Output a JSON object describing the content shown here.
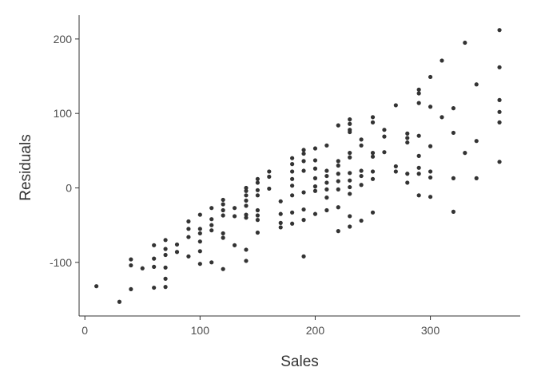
{
  "chart_data": {
    "type": "scatter",
    "title": "",
    "xlabel": "Sales",
    "ylabel": "Residuals",
    "xlim": [
      -5,
      378
    ],
    "ylim": [
      -172,
      232
    ],
    "xticks": [
      0,
      100,
      200,
      300
    ],
    "yticks": [
      -100,
      0,
      100,
      200
    ],
    "xtick_labels": [
      "0",
      "100",
      "200",
      "300"
    ],
    "ytick_labels": [
      "-100",
      "0",
      "100",
      "200"
    ],
    "grid": false,
    "point_color": "#333333",
    "series": [
      {
        "name": "residuals",
        "points": [
          [
            10,
            -132
          ],
          [
            30,
            -153
          ],
          [
            40,
            -96
          ],
          [
            40,
            -104
          ],
          [
            40,
            -136
          ],
          [
            50,
            -108
          ],
          [
            60,
            -77
          ],
          [
            60,
            -95
          ],
          [
            60,
            -106
          ],
          [
            60,
            -134
          ],
          [
            70,
            -70
          ],
          [
            70,
            -82
          ],
          [
            70,
            -90
          ],
          [
            70,
            -107
          ],
          [
            70,
            -122
          ],
          [
            70,
            -133
          ],
          [
            80,
            -76
          ],
          [
            80,
            -86
          ],
          [
            90,
            -45
          ],
          [
            90,
            -55
          ],
          [
            90,
            -66
          ],
          [
            90,
            -92
          ],
          [
            100,
            -36
          ],
          [
            100,
            -55
          ],
          [
            100,
            -61
          ],
          [
            100,
            -72
          ],
          [
            100,
            -85
          ],
          [
            100,
            -102
          ],
          [
            110,
            -27
          ],
          [
            110,
            -42
          ],
          [
            110,
            -50
          ],
          [
            110,
            -57
          ],
          [
            110,
            -100
          ],
          [
            120,
            -16
          ],
          [
            120,
            -22
          ],
          [
            120,
            -30
          ],
          [
            120,
            -37
          ],
          [
            120,
            -61
          ],
          [
            120,
            -67
          ],
          [
            120,
            -109
          ],
          [
            130,
            -27
          ],
          [
            130,
            -38
          ],
          [
            130,
            -77
          ],
          [
            140,
            0
          ],
          [
            140,
            -4
          ],
          [
            140,
            -10
          ],
          [
            140,
            -17
          ],
          [
            140,
            -24
          ],
          [
            140,
            -36
          ],
          [
            140,
            -40
          ],
          [
            140,
            -83
          ],
          [
            140,
            -98
          ],
          [
            150,
            12
          ],
          [
            150,
            7
          ],
          [
            150,
            -3
          ],
          [
            150,
            -10
          ],
          [
            150,
            -30
          ],
          [
            150,
            -37
          ],
          [
            150,
            -43
          ],
          [
            150,
            -60
          ],
          [
            160,
            22
          ],
          [
            160,
            15
          ],
          [
            160,
            -1
          ],
          [
            170,
            -18
          ],
          [
            170,
            -35
          ],
          [
            170,
            -47
          ],
          [
            170,
            -53
          ],
          [
            180,
            40
          ],
          [
            180,
            32
          ],
          [
            180,
            22
          ],
          [
            180,
            12
          ],
          [
            180,
            3
          ],
          [
            180,
            -10
          ],
          [
            180,
            -33
          ],
          [
            180,
            -48
          ],
          [
            190,
            51
          ],
          [
            190,
            46
          ],
          [
            190,
            36
          ],
          [
            190,
            23
          ],
          [
            190,
            -6
          ],
          [
            190,
            -29
          ],
          [
            190,
            -43
          ],
          [
            190,
            -92
          ],
          [
            200,
            53
          ],
          [
            200,
            37
          ],
          [
            200,
            26
          ],
          [
            200,
            13
          ],
          [
            200,
            2
          ],
          [
            200,
            -4
          ],
          [
            200,
            -35
          ],
          [
            210,
            57
          ],
          [
            210,
            23
          ],
          [
            210,
            16
          ],
          [
            210,
            7
          ],
          [
            210,
            -2
          ],
          [
            210,
            -13
          ],
          [
            210,
            -30
          ],
          [
            220,
            84
          ],
          [
            220,
            36
          ],
          [
            220,
            30
          ],
          [
            220,
            19
          ],
          [
            220,
            9
          ],
          [
            220,
            -2
          ],
          [
            220,
            -26
          ],
          [
            220,
            -58
          ],
          [
            230,
            92
          ],
          [
            230,
            86
          ],
          [
            230,
            78
          ],
          [
            230,
            75
          ],
          [
            230,
            47
          ],
          [
            230,
            41
          ],
          [
            230,
            20
          ],
          [
            230,
            10
          ],
          [
            230,
            1
          ],
          [
            230,
            -8
          ],
          [
            230,
            -38
          ],
          [
            230,
            -52
          ],
          [
            240,
            65
          ],
          [
            240,
            57
          ],
          [
            240,
            23
          ],
          [
            240,
            16
          ],
          [
            240,
            4
          ],
          [
            240,
            -44
          ],
          [
            250,
            95
          ],
          [
            250,
            88
          ],
          [
            250,
            47
          ],
          [
            250,
            42
          ],
          [
            250,
            22
          ],
          [
            250,
            12
          ],
          [
            250,
            -33
          ],
          [
            260,
            78
          ],
          [
            260,
            69
          ],
          [
            260,
            48
          ],
          [
            270,
            111
          ],
          [
            270,
            29
          ],
          [
            270,
            22
          ],
          [
            280,
            73
          ],
          [
            280,
            67
          ],
          [
            280,
            61
          ],
          [
            280,
            19
          ],
          [
            280,
            7
          ],
          [
            290,
            132
          ],
          [
            290,
            127
          ],
          [
            290,
            114
          ],
          [
            290,
            70
          ],
          [
            290,
            43
          ],
          [
            290,
            27
          ],
          [
            290,
            19
          ],
          [
            290,
            -10
          ],
          [
            300,
            149
          ],
          [
            300,
            109
          ],
          [
            300,
            56
          ],
          [
            300,
            22
          ],
          [
            300,
            14
          ],
          [
            300,
            -12
          ],
          [
            310,
            171
          ],
          [
            310,
            95
          ],
          [
            320,
            107
          ],
          [
            320,
            74
          ],
          [
            320,
            13
          ],
          [
            320,
            -32
          ],
          [
            330,
            195
          ],
          [
            330,
            47
          ],
          [
            340,
            139
          ],
          [
            340,
            63
          ],
          [
            340,
            13
          ],
          [
            360,
            212
          ],
          [
            360,
            162
          ],
          [
            360,
            118
          ],
          [
            360,
            102
          ],
          [
            360,
            88
          ],
          [
            360,
            35
          ]
        ]
      }
    ]
  }
}
